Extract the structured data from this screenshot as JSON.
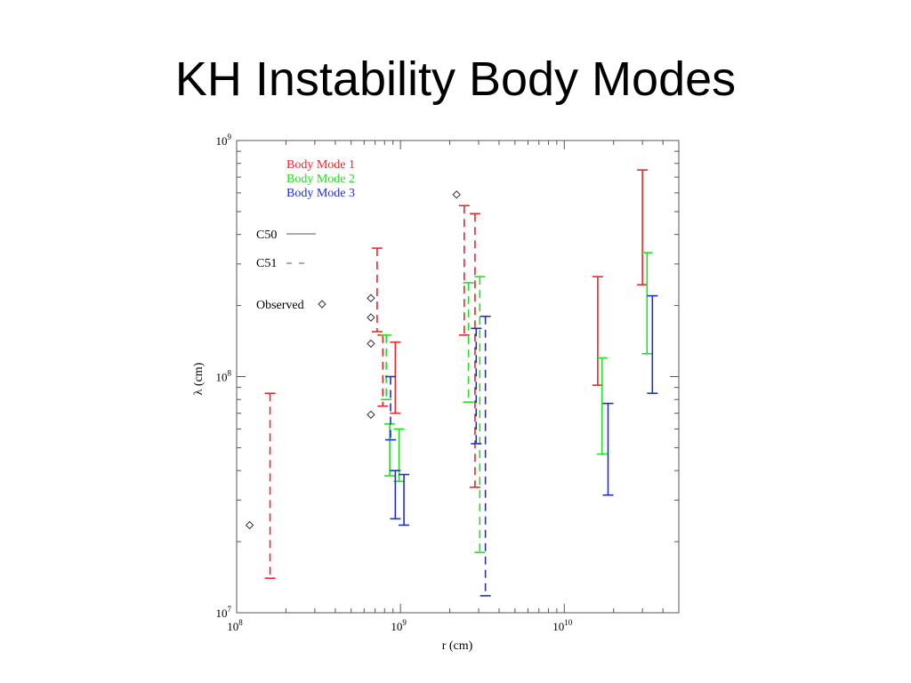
{
  "title": "KH Instability Body Modes",
  "chart_data": {
    "type": "scatter",
    "xscale": "log",
    "yscale": "log",
    "xlim": [
      100000000.0,
      50000000000.0
    ],
    "ylim": [
      10000000.0,
      1000000000.0
    ],
    "xlabel": "r (cm)",
    "ylabel": "λ (cm)",
    "x_ticks": [
      {
        "value": 100000000.0,
        "base": "10",
        "exp": "8"
      },
      {
        "value": 1000000000.0,
        "base": "10",
        "exp": "9"
      },
      {
        "value": 10000000000.0,
        "base": "10",
        "exp": "10"
      }
    ],
    "y_ticks": [
      {
        "value": 10000000.0,
        "base": "10",
        "exp": "7"
      },
      {
        "value": 100000000.0,
        "base": "10",
        "exp": "8"
      },
      {
        "value": 1000000000.0,
        "base": "10",
        "exp": "9"
      }
    ],
    "legend": {
      "modes": [
        {
          "label": "Body Mode 1",
          "color": "#e8282e"
        },
        {
          "label": "Body Mode 2",
          "color": "#22e022"
        },
        {
          "label": "Body Mode 3",
          "color": "#1f2ed0"
        }
      ],
      "c50": "C50",
      "c51": "C51",
      "observed": "Observed"
    },
    "error_bars": [
      {
        "mode": 1,
        "model": "C51",
        "x": 160000000.0,
        "ymin": 14000000.0,
        "ymax": 85000000.0
      },
      {
        "mode": 1,
        "model": "C51",
        "x": 720000000.0,
        "ymin": 155000000.0,
        "ymax": 350000000.0
      },
      {
        "mode": 1,
        "model": "C51",
        "x": 780000000.0,
        "ymin": 75000000.0,
        "ymax": 150000000.0
      },
      {
        "mode": 1,
        "model": "C50",
        "x": 930000000.0,
        "ymin": 70000000.0,
        "ymax": 140000000.0
      },
      {
        "mode": 2,
        "model": "C51",
        "x": 820000000.0,
        "ymin": 80000000.0,
        "ymax": 150000000.0
      },
      {
        "mode": 2,
        "model": "C50",
        "x": 860000000.0,
        "ymin": 38000000.0,
        "ymax": 63000000.0
      },
      {
        "mode": 2,
        "model": "C50",
        "x": 980000000.0,
        "ymin": 36000000.0,
        "ymax": 60000000.0
      },
      {
        "mode": 3,
        "model": "C51",
        "x": 870000000.0,
        "ymin": 54000000.0,
        "ymax": 100000000.0
      },
      {
        "mode": 3,
        "model": "C50",
        "x": 930000000.0,
        "ymin": 25000000.0,
        "ymax": 40000000.0
      },
      {
        "mode": 3,
        "model": "C50",
        "x": 1050000000.0,
        "ymin": 23500000.0,
        "ymax": 38500000.0
      },
      {
        "mode": 1,
        "model": "C51",
        "x": 2450000000.0,
        "ymin": 150000000.0,
        "ymax": 530000000.0
      },
      {
        "mode": 1,
        "model": "C51",
        "x": 2850000000.0,
        "ymin": 34000000.0,
        "ymax": 490000000.0
      },
      {
        "mode": 2,
        "model": "C51",
        "x": 2600000000.0,
        "ymin": 78000000.0,
        "ymax": 250000000.0
      },
      {
        "mode": 2,
        "model": "C51",
        "x": 3050000000.0,
        "ymin": 18000000.0,
        "ymax": 265000000.0
      },
      {
        "mode": 3,
        "model": "C51",
        "x": 2900000000.0,
        "ymin": 52000000.0,
        "ymax": 160000000.0
      },
      {
        "mode": 3,
        "model": "C51",
        "x": 3300000000.0,
        "ymin": 11800000.0,
        "ymax": 180000000.0
      },
      {
        "mode": 1,
        "model": "C50",
        "x": 16000000000.0,
        "ymin": 92000000.0,
        "ymax": 265000000.0
      },
      {
        "mode": 1,
        "model": "C50",
        "x": 30000000000.0,
        "ymin": 245000000.0,
        "ymax": 750000000.0
      },
      {
        "mode": 2,
        "model": "C50",
        "x": 17000000000.0,
        "ymin": 47000000.0,
        "ymax": 120000000.0
      },
      {
        "mode": 2,
        "model": "C50",
        "x": 32000000000.0,
        "ymin": 125000000.0,
        "ymax": 335000000.0
      },
      {
        "mode": 3,
        "model": "C50",
        "x": 18500000000.0,
        "ymin": 31500000.0,
        "ymax": 77000000.0
      },
      {
        "mode": 3,
        "model": "C50",
        "x": 34500000000.0,
        "ymin": 85000000.0,
        "ymax": 220000000.0
      }
    ],
    "observed": [
      {
        "x": 120000000.0,
        "y": 23500000.0
      },
      {
        "x": 660000000.0,
        "y": 215000000.0
      },
      {
        "x": 660000000.0,
        "y": 178000000.0
      },
      {
        "x": 660000000.0,
        "y": 138000000.0
      },
      {
        "x": 660000000.0,
        "y": 69000000.0
      },
      {
        "x": 2200000000.0,
        "y": 590000000.0
      }
    ]
  }
}
